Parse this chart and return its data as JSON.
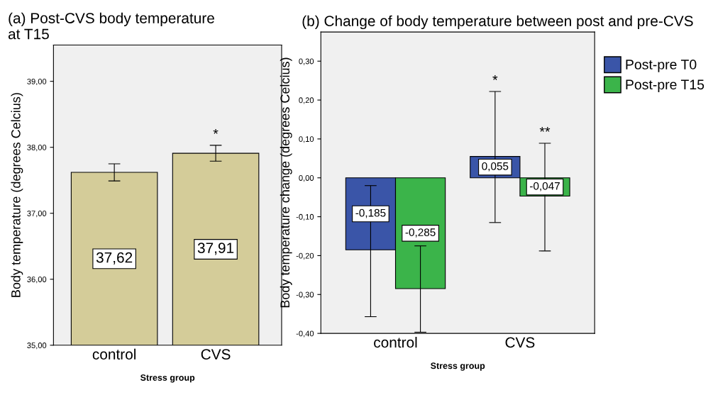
{
  "chart_data": [
    {
      "type": "bar",
      "title": "(a) Post-CVS body temperature\nat T15",
      "xlabel": "Stress group",
      "ylabel": "Body temperature (degrees Celcius)",
      "categories": [
        "control",
        "CVS"
      ],
      "series": [
        {
          "color": "#d4cc99",
          "values": [
            37.62,
            37.91
          ],
          "value_labels": [
            "37,62",
            "37,91"
          ],
          "errors": [
            [
              37.49,
              37.75
            ],
            [
              37.79,
              38.03
            ]
          ]
        }
      ],
      "ylim": [
        35,
        39.55
      ],
      "yticks": [
        {
          "value": 35,
          "label": "35,00"
        },
        {
          "value": 36,
          "label": "36,00"
        },
        {
          "value": 37,
          "label": "37,00"
        },
        {
          "value": 38,
          "label": "38,00"
        },
        {
          "value": 39,
          "label": "39,00"
        }
      ],
      "annotations": [
        "*"
      ],
      "grid": false,
      "legend": false
    },
    {
      "type": "bar",
      "title": "(b) Change of body temperature between post and pre-CVS",
      "xlabel": "Stress group",
      "ylabel": "Body temperature change (degrees Celcius)",
      "categories": [
        "control",
        "CVS"
      ],
      "series": [
        {
          "name": "Post-pre T0",
          "color": "#3a55a8",
          "values": [
            -0.185,
            0.055
          ],
          "value_labels": [
            "-0,185",
            "0,055"
          ],
          "errors": [
            [
              -0.357,
              -0.02
            ],
            [
              -0.115,
              0.222
            ]
          ]
        },
        {
          "name": "Post-pre T15",
          "color": "#3bb44a",
          "values": [
            -0.285,
            -0.047
          ],
          "value_labels": [
            "-0,285",
            "-0,047"
          ],
          "errors": [
            [
              -0.397,
              -0.175
            ],
            [
              -0.188,
              0.089
            ]
          ]
        }
      ],
      "ylim": [
        -0.4,
        0.375
      ],
      "yticks": [
        {
          "value": -0.4,
          "label": "-0,40"
        },
        {
          "value": -0.3,
          "label": "-0,30"
        },
        {
          "value": -0.2,
          "label": "-0,20"
        },
        {
          "value": -0.1,
          "label": "-0,10"
        },
        {
          "value": 0,
          "label": "0,00"
        },
        {
          "value": 0.1,
          "label": "0,10"
        },
        {
          "value": 0.2,
          "label": "0,20"
        },
        {
          "value": 0.3,
          "label": "0,30"
        }
      ],
      "annotations": [
        "*",
        "**"
      ],
      "grid": false,
      "legend": "top right"
    }
  ]
}
